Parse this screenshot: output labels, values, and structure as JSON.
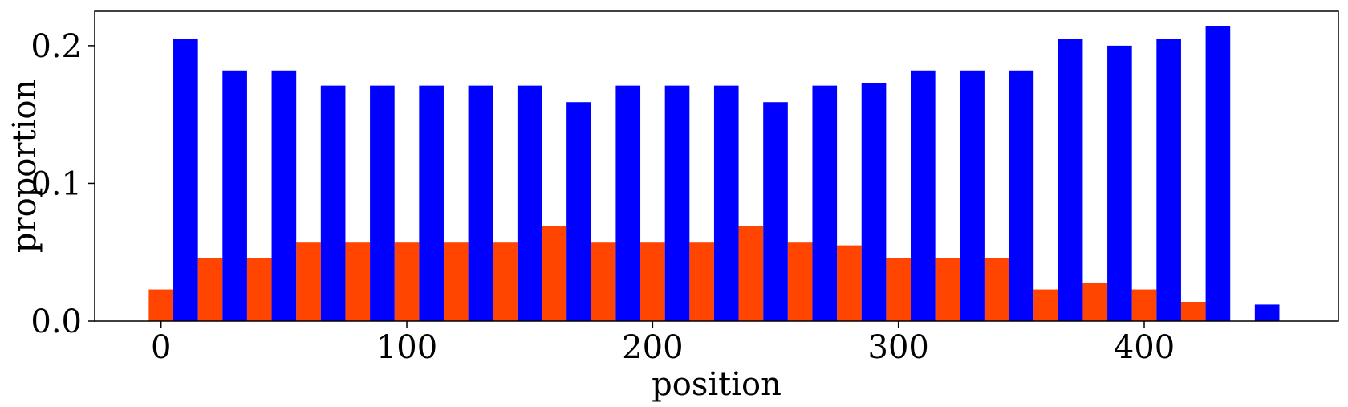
{
  "chart_data": {
    "type": "bar",
    "title": "",
    "xlabel": "position",
    "ylabel": "proportion",
    "xlim": [
      -27,
      479
    ],
    "ylim": [
      0,
      0.225
    ],
    "bar_width": 10,
    "xticks": [
      0,
      100,
      200,
      300,
      400
    ],
    "yticks": [
      0.0,
      0.1,
      0.2
    ],
    "ytick_labels": [
      "0.0",
      "0.1",
      "0.2"
    ],
    "legend": "none",
    "grid": false,
    "series": [
      {
        "color": "#ff4500",
        "x": [
          0,
          20,
          40,
          60,
          80,
          100,
          120,
          140,
          160,
          180,
          200,
          220,
          240,
          260,
          280,
          300,
          320,
          340,
          360,
          380,
          400,
          420
        ],
        "values": [
          0.023,
          0.046,
          0.046,
          0.057,
          0.057,
          0.057,
          0.057,
          0.057,
          0.069,
          0.057,
          0.057,
          0.057,
          0.069,
          0.057,
          0.055,
          0.046,
          0.046,
          0.046,
          0.023,
          0.028,
          0.023,
          0.014
        ]
      },
      {
        "color": "#0000ff",
        "x": [
          10,
          30,
          50,
          70,
          90,
          110,
          130,
          150,
          170,
          190,
          210,
          230,
          250,
          270,
          290,
          310,
          330,
          350,
          370,
          390,
          410,
          430,
          450
        ],
        "values": [
          0.205,
          0.182,
          0.182,
          0.171,
          0.171,
          0.171,
          0.171,
          0.171,
          0.159,
          0.171,
          0.171,
          0.171,
          0.159,
          0.171,
          0.173,
          0.182,
          0.182,
          0.182,
          0.205,
          0.2,
          0.205,
          0.214,
          0.012
        ]
      }
    ]
  }
}
